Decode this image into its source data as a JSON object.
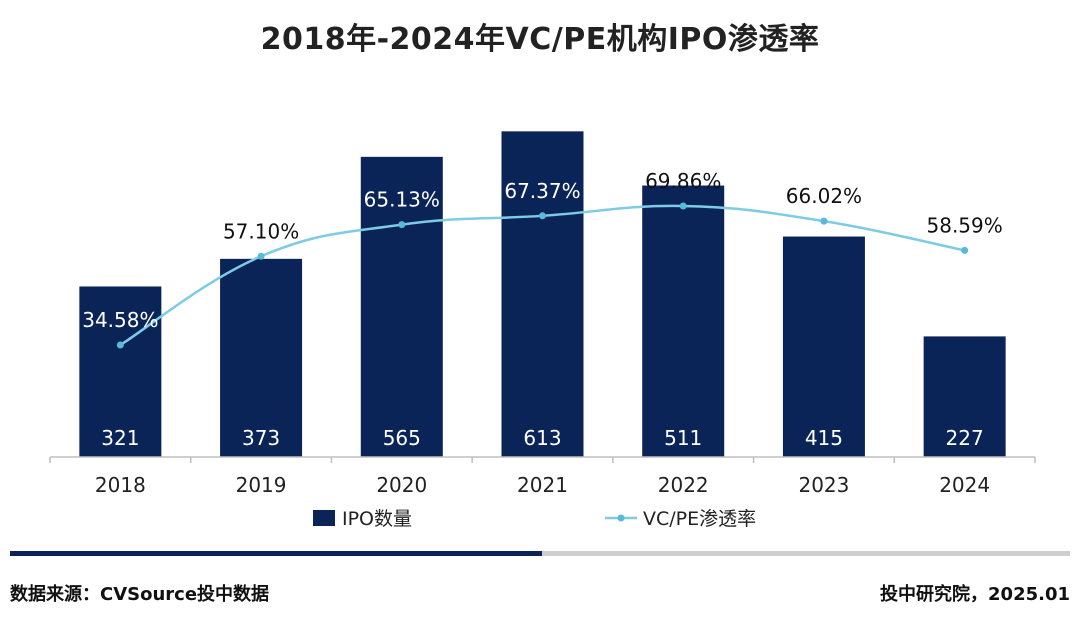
{
  "title": "2018年-2024年VC/PE机构IPO渗透率",
  "chart_data": {
    "type": "bar",
    "categories": [
      "2018",
      "2019",
      "2020",
      "2021",
      "2022",
      "2023",
      "2024"
    ],
    "series": [
      {
        "name": "IPO数量",
        "type": "bar",
        "values": [
          321,
          373,
          565,
          613,
          511,
          415,
          227
        ],
        "color": "#0b2458"
      },
      {
        "name": "VC/PE渗透率",
        "type": "line",
        "values": [
          34.58,
          57.1,
          65.13,
          67.37,
          69.86,
          66.02,
          58.59
        ],
        "labels": [
          "34.58%",
          "57.10%",
          "65.13%",
          "67.37%",
          "69.86%",
          "66.02%",
          "58.59%"
        ],
        "color": "#7ecbe6"
      }
    ],
    "bar_ylim": [
      0,
      640
    ],
    "line_ylim": [
      0,
      100
    ],
    "legend_position": "bottom",
    "grid": false
  },
  "footer": {
    "source": "数据来源：CVSource投中数据",
    "credit": "投中研究院，2025.01"
  }
}
